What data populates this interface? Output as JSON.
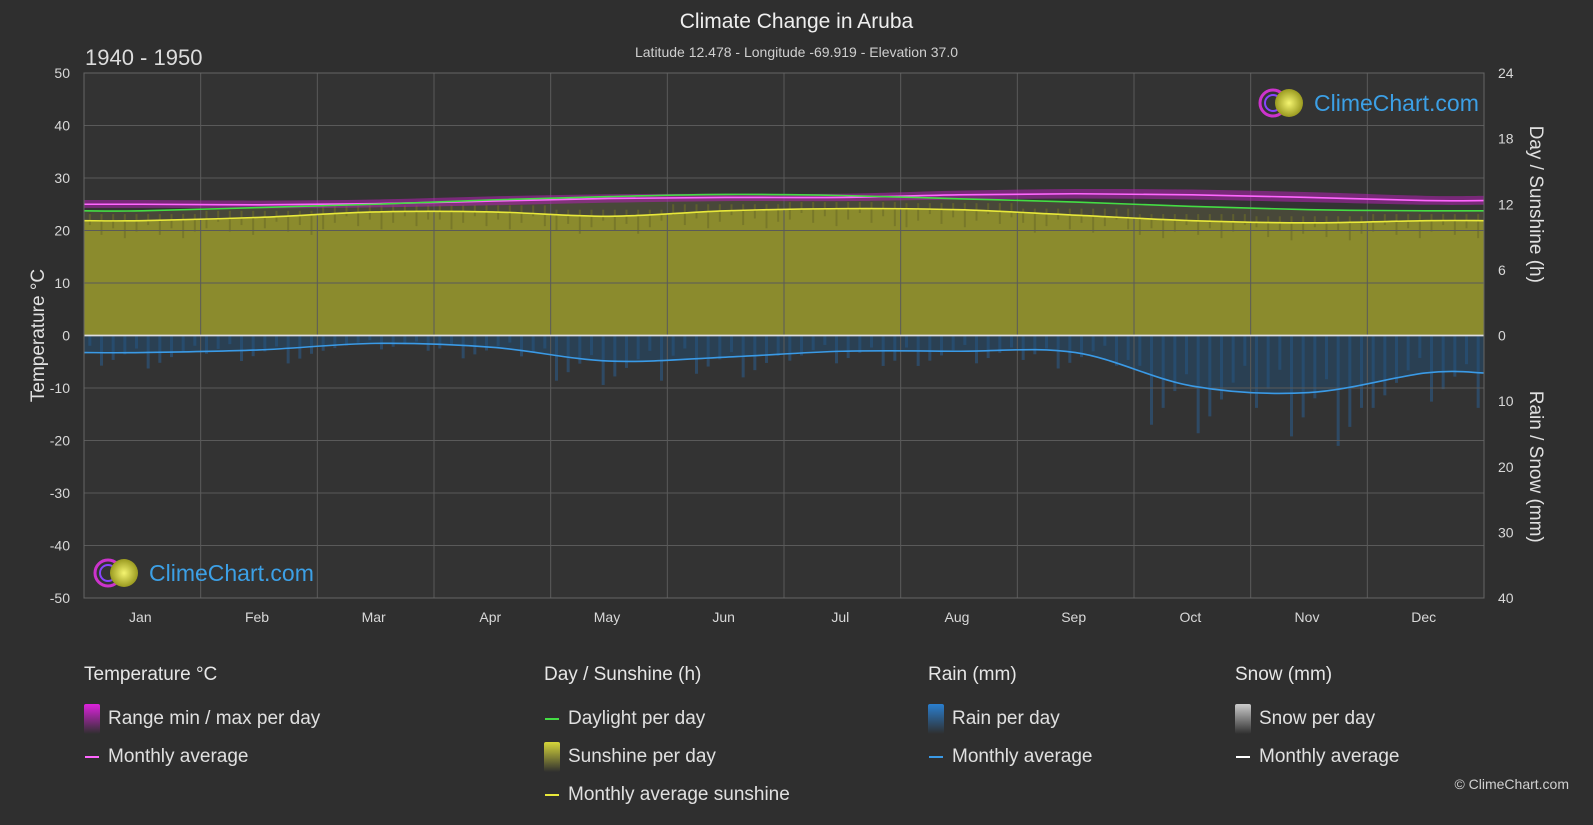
{
  "header": {
    "title": "Climate Change in Aruba",
    "subtitle": "Latitude 12.478 - Longitude -69.919 - Elevation 37.0",
    "period": "1940 - 1950",
    "copyright": "© ClimeChart.com"
  },
  "logo": {
    "text": "ClimeChart.com"
  },
  "chart_data": {
    "type": "line",
    "title": "Climate Change in Aruba",
    "categories": [
      "Jan",
      "Feb",
      "Mar",
      "Apr",
      "May",
      "Jun",
      "Jul",
      "Aug",
      "Sep",
      "Oct",
      "Nov",
      "Dec"
    ],
    "y_left": {
      "label": "Temperature °C",
      "ylim": [
        -50,
        50
      ],
      "ticks": [
        50,
        40,
        30,
        20,
        10,
        0,
        -10,
        -20,
        -30,
        -40,
        -50
      ]
    },
    "y_right_top": {
      "label": "Day / Sunshine (h)",
      "ylim": [
        0,
        24
      ],
      "ticks": [
        24,
        18,
        12,
        6,
        0
      ]
    },
    "y_right_bottom": {
      "label": "Rain / Snow (mm)",
      "ylim": [
        0,
        40
      ],
      "ticks": [
        0,
        10,
        20,
        30,
        40
      ]
    },
    "grid": true,
    "series": [
      {
        "name": "Monthly average",
        "group": "Temperature °C",
        "axis": "temp",
        "color": "#ff66ff",
        "values": [
          25.0,
          24.9,
          25.1,
          25.6,
          26.1,
          26.3,
          26.3,
          26.8,
          27.0,
          26.8,
          26.3,
          25.7
        ]
      },
      {
        "name": "Daylight per day",
        "group": "Day / Sunshine (h)",
        "axis": "hours",
        "color": "#44dd44",
        "values": [
          11.4,
          11.7,
          12.0,
          12.4,
          12.7,
          12.9,
          12.8,
          12.5,
          12.2,
          11.8,
          11.5,
          11.4
        ]
      },
      {
        "name": "Monthly average sunshine",
        "group": "Day / Sunshine (h)",
        "axis": "hours",
        "color": "#e8e83a",
        "values": [
          10.5,
          10.8,
          11.3,
          11.3,
          10.9,
          11.4,
          11.6,
          11.5,
          11.0,
          10.5,
          10.3,
          10.5
        ]
      },
      {
        "name": "Monthly average",
        "group": "Rain (mm)",
        "axis": "rain",
        "color": "#3a9ae6",
        "values": [
          2.6,
          2.2,
          1.2,
          1.8,
          3.9,
          3.3,
          2.4,
          2.4,
          2.6,
          7.7,
          8.7,
          5.7
        ]
      },
      {
        "name": "Monthly average",
        "group": "Snow (mm)",
        "axis": "snow",
        "color": "#dddddd",
        "values": [
          0,
          0,
          0,
          0,
          0,
          0,
          0,
          0,
          0,
          0,
          0,
          0
        ]
      }
    ],
    "temp_range": {
      "name": "Range min / max per day",
      "min": [
        24.3,
        24.2,
        24.4,
        24.8,
        25.3,
        25.6,
        25.6,
        25.9,
        26.1,
        25.9,
        25.4,
        24.9
      ],
      "max": [
        25.8,
        25.7,
        25.9,
        26.5,
        26.9,
        27.0,
        27.0,
        27.6,
        27.9,
        27.8,
        27.3,
        26.6
      ]
    }
  },
  "legend": {
    "groups": [
      {
        "title": "Temperature °C",
        "items": [
          {
            "label": "Range min / max per day",
            "kind": "block",
            "color": "#dd22dd"
          },
          {
            "label": "Monthly average",
            "kind": "line",
            "color": "#ff66ff"
          }
        ]
      },
      {
        "title": "Day / Sunshine (h)",
        "items": [
          {
            "label": "Daylight per day",
            "kind": "line",
            "color": "#44dd44"
          },
          {
            "label": "Sunshine per day",
            "kind": "block",
            "color": "#d6d63a"
          },
          {
            "label": "Monthly average sunshine",
            "kind": "line",
            "color": "#e8e83a"
          }
        ]
      },
      {
        "title": "Rain (mm)",
        "items": [
          {
            "label": "Rain per day",
            "kind": "block",
            "color": "#2a7fd0"
          },
          {
            "label": "Monthly average",
            "kind": "line",
            "color": "#3a9ae6"
          }
        ]
      },
      {
        "title": "Snow (mm)",
        "items": [
          {
            "label": "Snow per day",
            "kind": "block",
            "color": "#cccccc"
          },
          {
            "label": "Monthly average",
            "kind": "line",
            "color": "#ffffff"
          }
        ]
      }
    ]
  }
}
